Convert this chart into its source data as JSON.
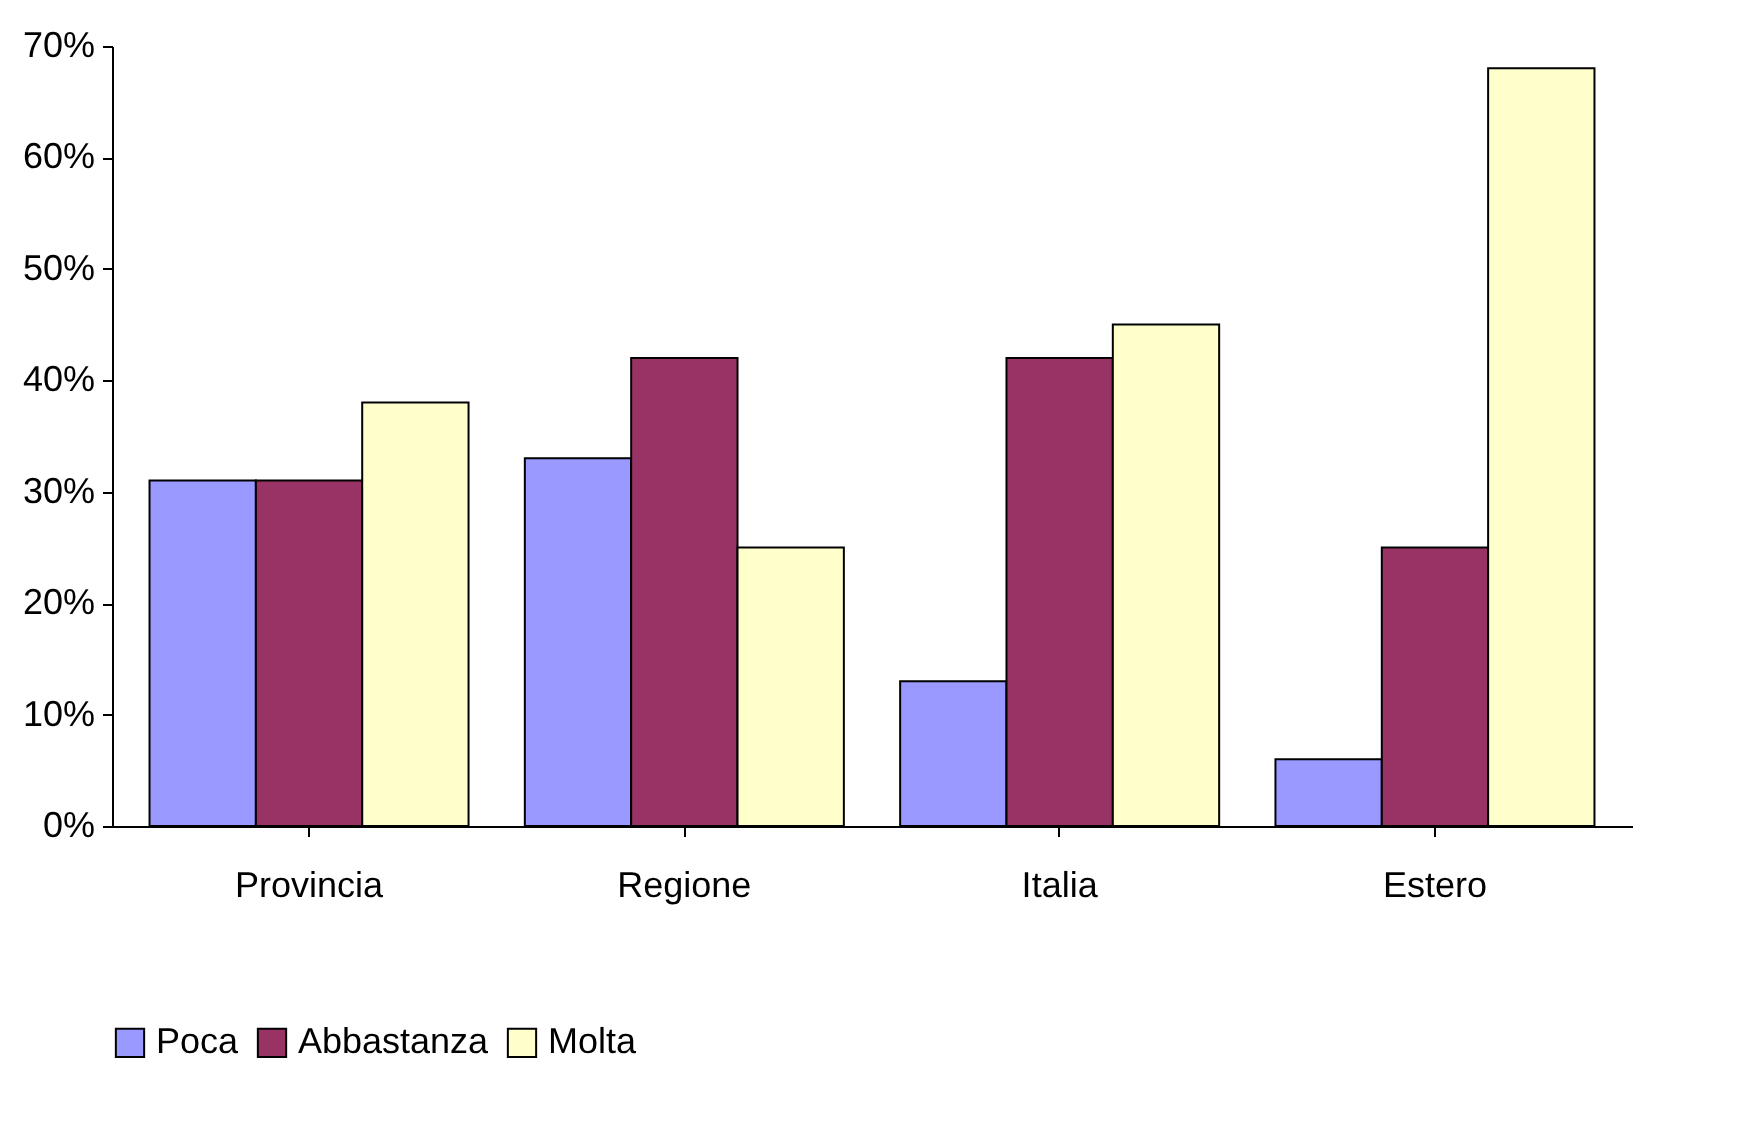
{
  "chart_data": {
    "type": "bar",
    "categories": [
      "Provincia",
      "Regione",
      "Italia",
      "Estero"
    ],
    "series": [
      {
        "name": "Poca",
        "color": "#9999ff",
        "values": [
          31,
          33,
          13,
          6
        ]
      },
      {
        "name": "Abbastanza",
        "color": "#993366",
        "values": [
          31,
          42,
          42,
          25
        ]
      },
      {
        "name": "Molta",
        "color": "#ffffcc",
        "values": [
          38,
          25,
          45,
          68
        ]
      }
    ],
    "ylim": [
      0,
      70
    ],
    "yticks": [
      {
        "value": 0,
        "label": "0%"
      },
      {
        "value": 10,
        "label": "10%"
      },
      {
        "value": 20,
        "label": "20%"
      },
      {
        "value": 30,
        "label": "30%"
      },
      {
        "value": 40,
        "label": "40%"
      },
      {
        "value": 50,
        "label": "50%"
      },
      {
        "value": 60,
        "label": "60%"
      },
      {
        "value": 70,
        "label": "70%"
      }
    ],
    "legend": "bottom",
    "grid": false
  }
}
